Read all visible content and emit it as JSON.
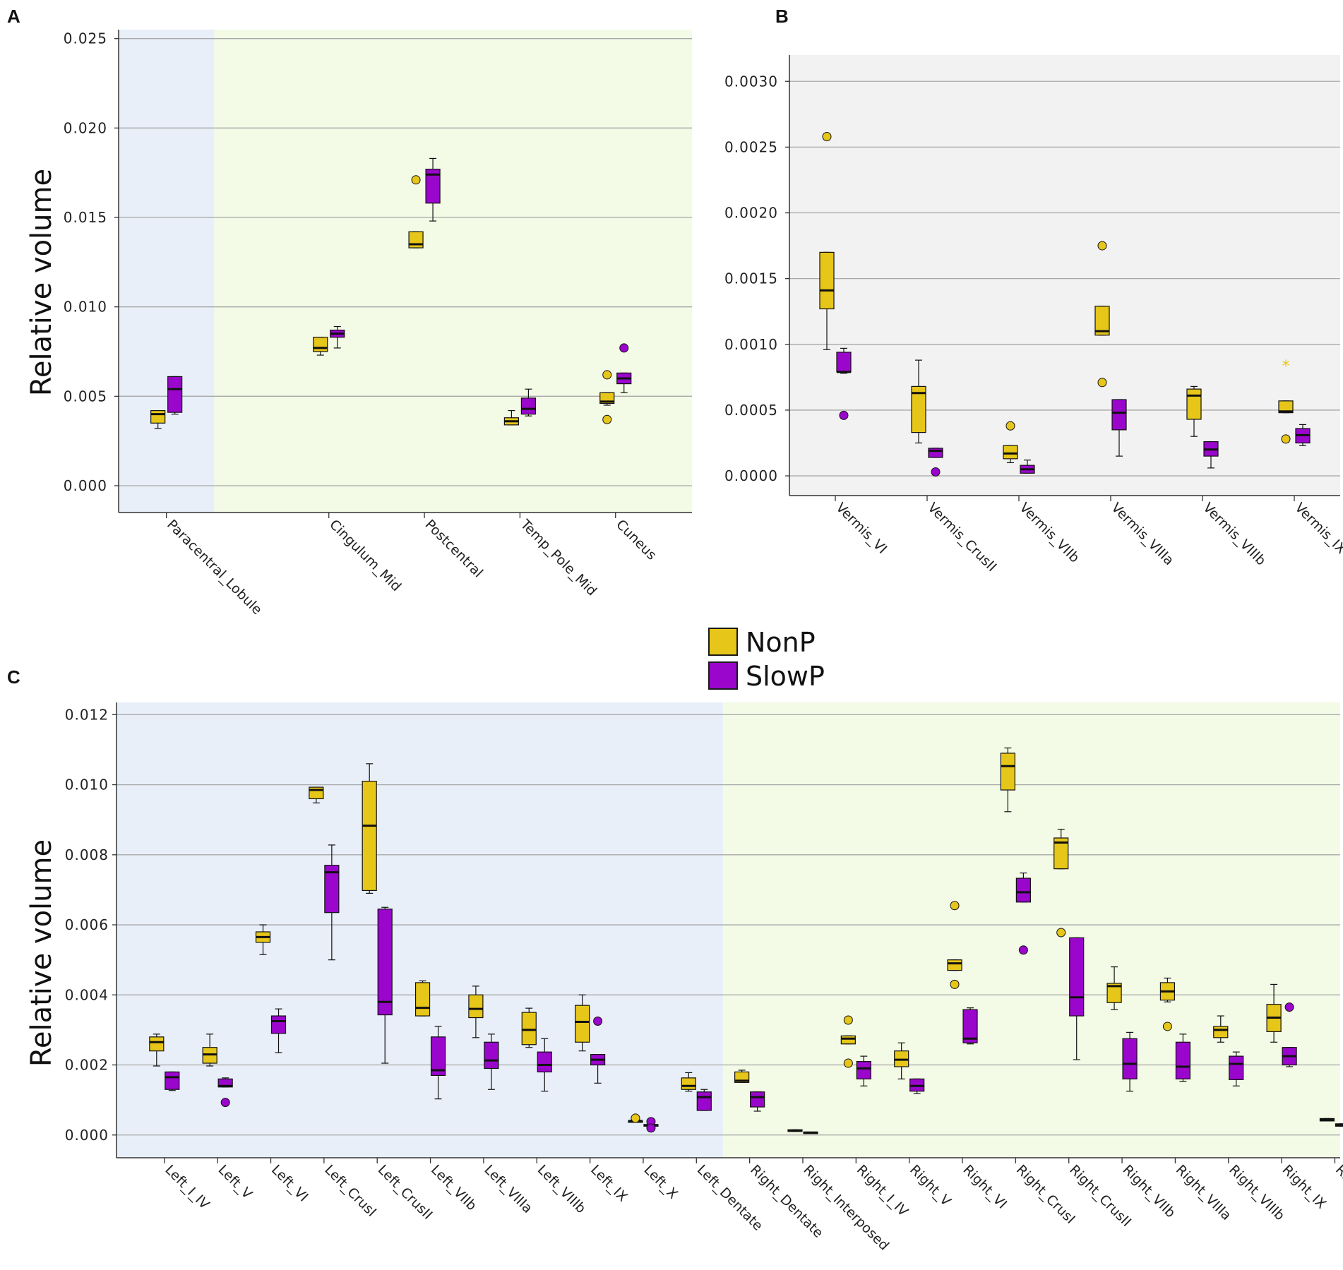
{
  "legend": {
    "entries": [
      {
        "name": "NonP",
        "color": "#e6c619"
      },
      {
        "name": "SlowP",
        "color": "#9a06cc"
      }
    ]
  },
  "colors": {
    "nonp": "#e6c619",
    "slowp": "#9a06cc",
    "blue_bg": "#e8eff9",
    "green_bg": "#f3fbe6",
    "gray_bg": "#f2f2f2",
    "grid": "#a8a8a8"
  },
  "chart_data": [
    {
      "panel": "A",
      "type": "box",
      "ylabel": "Relative volume",
      "ylim": [
        -0.0015,
        0.0255
      ],
      "yticks": [
        0.0,
        0.005,
        0.01,
        0.015,
        0.02,
        0.025
      ],
      "ytick_labels": [
        "0.000",
        "0.005",
        "0.010",
        "0.015",
        "0.020",
        "0.025"
      ],
      "regions": [
        {
          "from": 0,
          "to": 1,
          "color": "blue"
        },
        {
          "from": 1,
          "to": 6,
          "color": "green"
        }
      ],
      "categories": [
        "Paracentral_Lobule",
        "Cingulum_Mid",
        "Postcentral",
        "Temp_Pole_Mid",
        "Cuneus"
      ],
      "category_positions": [
        0.5,
        2.2,
        3.2,
        4.2,
        5.2
      ],
      "series": [
        {
          "name": "NonP",
          "boxes": [
            {
              "min": 0.0032,
              "q1": 0.0035,
              "median": 0.004,
              "q3": 0.0042,
              "max": 0.0042,
              "outliers": []
            },
            {
              "min": 0.0073,
              "q1": 0.0075,
              "median": 0.0077,
              "q3": 0.0083,
              "max": 0.0083,
              "outliers": []
            },
            {
              "min": 0.0133,
              "q1": 0.0133,
              "median": 0.0135,
              "q3": 0.0142,
              "max": 0.0142,
              "outliers": [
                0.0171
              ]
            },
            {
              "min": 0.0034,
              "q1": 0.0034,
              "median": 0.0036,
              "q3": 0.0038,
              "max": 0.0042,
              "outliers": []
            },
            {
              "min": 0.0045,
              "q1": 0.0046,
              "median": 0.0047,
              "q3": 0.0052,
              "max": 0.0052,
              "outliers": [
                0.0062,
                0.0037
              ]
            }
          ]
        },
        {
          "name": "SlowP",
          "boxes": [
            {
              "min": 0.004,
              "q1": 0.0041,
              "median": 0.0054,
              "q3": 0.0061,
              "max": 0.0061,
              "outliers": []
            },
            {
              "min": 0.0077,
              "q1": 0.0083,
              "median": 0.0085,
              "q3": 0.0087,
              "max": 0.0089,
              "outliers": []
            },
            {
              "min": 0.0148,
              "q1": 0.0158,
              "median": 0.0174,
              "q3": 0.0177,
              "max": 0.0183,
              "outliers": []
            },
            {
              "min": 0.0039,
              "q1": 0.004,
              "median": 0.0043,
              "q3": 0.0049,
              "max": 0.0054,
              "outliers": []
            },
            {
              "min": 0.0052,
              "q1": 0.0057,
              "median": 0.006,
              "q3": 0.0063,
              "max": 0.0063,
              "outliers": [
                0.0077
              ]
            }
          ]
        }
      ]
    },
    {
      "panel": "B",
      "type": "box",
      "ylabel": "",
      "ylim": [
        -0.00015,
        0.0032
      ],
      "yticks": [
        0.0,
        0.0005,
        0.001,
        0.0015,
        0.002,
        0.0025,
        0.003
      ],
      "ytick_labels": [
        "0.0000",
        "0.0005",
        "0.0010",
        "0.0015",
        "0.0020",
        "0.0025",
        "0.0030"
      ],
      "regions": [
        {
          "from": 0,
          "to": 6,
          "color": "gray"
        }
      ],
      "categories": [
        "Vermis_VI",
        "Vermis_CrusII",
        "Vermis_VIIb",
        "Vermis_VIIIa",
        "Vermis_VIIIb",
        "Vermis_IX"
      ],
      "category_positions": [
        0.5,
        1.5,
        2.5,
        3.5,
        4.5,
        5.5
      ],
      "series": [
        {
          "name": "NonP",
          "boxes": [
            {
              "min": 0.00096,
              "q1": 0.00127,
              "median": 0.00141,
              "q3": 0.0017,
              "max": 0.0017,
              "outliers": [
                0.00258
              ]
            },
            {
              "min": 0.00025,
              "q1": 0.00033,
              "median": 0.00063,
              "q3": 0.00068,
              "max": 0.00088,
              "outliers": []
            },
            {
              "min": 0.0001,
              "q1": 0.00013,
              "median": 0.00017,
              "q3": 0.00023,
              "max": 0.00023,
              "outliers": [
                0.00038
              ]
            },
            {
              "min": 0.00107,
              "q1": 0.00107,
              "median": 0.0011,
              "q3": 0.00129,
              "max": 0.00129,
              "outliers": [
                0.00175,
                0.00071
              ]
            },
            {
              "min": 0.0003,
              "q1": 0.00043,
              "median": 0.00061,
              "q3": 0.00066,
              "max": 0.00068,
              "outliers": []
            },
            {
              "min": 0.00048,
              "q1": 0.00048,
              "median": 0.00049,
              "q3": 0.00057,
              "max": 0.00057,
              "outliers": [
                0.00028
              ]
            }
          ],
          "extremes": [
            null,
            null,
            null,
            null,
            null,
            0.00086
          ]
        },
        {
          "name": "SlowP",
          "boxes": [
            {
              "min": 0.00078,
              "q1": 0.00079,
              "median": 0.00079,
              "q3": 0.00094,
              "max": 0.00097,
              "outliers": [
                0.00046
              ]
            },
            {
              "min": 0.00014,
              "q1": 0.00014,
              "median": 0.00019,
              "q3": 0.00021,
              "max": 0.00021,
              "outliers": [
                3e-05
              ]
            },
            {
              "min": 2e-05,
              "q1": 2e-05,
              "median": 5e-05,
              "q3": 8e-05,
              "max": 0.00012,
              "outliers": []
            },
            {
              "min": 0.00015,
              "q1": 0.00035,
              "median": 0.00048,
              "q3": 0.00058,
              "max": 0.00058,
              "outliers": []
            },
            {
              "min": 6e-05,
              "q1": 0.00015,
              "median": 0.0002,
              "q3": 0.00026,
              "max": 0.00026,
              "outliers": []
            },
            {
              "min": 0.00023,
              "q1": 0.00025,
              "median": 0.00031,
              "q3": 0.00036,
              "max": 0.00039,
              "outliers": []
            }
          ]
        }
      ]
    },
    {
      "panel": "C",
      "type": "box",
      "ylabel": "Relative volume",
      "ylim": [
        -0.00065,
        0.01235
      ],
      "yticks": [
        0.0,
        0.002,
        0.004,
        0.006,
        0.008,
        0.01,
        0.012
      ],
      "ytick_labels": [
        "0.000",
        "0.002",
        "0.004",
        "0.006",
        "0.008",
        "0.010",
        "0.012"
      ],
      "regions": [
        {
          "from": 0,
          "to": 11.4,
          "color": "blue"
        },
        {
          "from": 11.4,
          "to": 24,
          "color": "green"
        }
      ],
      "categories": [
        "Left_I_IV",
        "Left_V",
        "Left_VI",
        "Left_CrusI",
        "Left_CrusII",
        "Left_VIIb",
        "Left_VIIIa",
        "Left_VIIIb",
        "Left_IX",
        "Left_X",
        "Left_Dentate",
        "Right_Dentate",
        "Right_Interposed",
        "Right_I_IV",
        "Right_V",
        "Right_VI",
        "Right_CrusI",
        "Right_CrusII",
        "Right_VIIb",
        "Right_VIIIa",
        "Right_VIIIb",
        "Right_IX",
        "Right_X"
      ],
      "category_positions": [
        0.9,
        1.9,
        2.9,
        3.9,
        4.9,
        5.9,
        6.9,
        7.9,
        8.9,
        9.9,
        10.9,
        11.9,
        12.9,
        13.9,
        14.9,
        15.9,
        16.9,
        17.9,
        18.9,
        19.9,
        20.9,
        21.9,
        22.9
      ],
      "series": [
        {
          "name": "NonP",
          "boxes": [
            {
              "min": 0.00197,
              "q1": 0.0024,
              "median": 0.00265,
              "q3": 0.0028,
              "max": 0.00288,
              "outliers": []
            },
            {
              "min": 0.00197,
              "q1": 0.00205,
              "median": 0.0023,
              "q3": 0.0025,
              "max": 0.00288,
              "outliers": []
            },
            {
              "min": 0.00515,
              "q1": 0.0055,
              "median": 0.00565,
              "q3": 0.0058,
              "max": 0.006,
              "outliers": []
            },
            {
              "min": 0.00948,
              "q1": 0.0096,
              "median": 0.00985,
              "q3": 0.00993,
              "max": 0.00993,
              "outliers": []
            },
            {
              "min": 0.0069,
              "q1": 0.00698,
              "median": 0.00883,
              "q3": 0.0101,
              "max": 0.0106,
              "outliers": []
            },
            {
              "min": 0.0034,
              "q1": 0.0034,
              "median": 0.00363,
              "q3": 0.00435,
              "max": 0.0044,
              "outliers": []
            },
            {
              "min": 0.00278,
              "q1": 0.00335,
              "median": 0.0036,
              "q3": 0.004,
              "max": 0.00425,
              "outliers": []
            },
            {
              "min": 0.0025,
              "q1": 0.00258,
              "median": 0.003,
              "q3": 0.0035,
              "max": 0.00362,
              "outliers": []
            },
            {
              "min": 0.0024,
              "q1": 0.00265,
              "median": 0.00323,
              "q3": 0.0037,
              "max": 0.004,
              "outliers": []
            },
            {
              "min": 0.0004,
              "q1": 0.0004,
              "median": 0.0004,
              "q3": 0.0004,
              "max": 0.0004,
              "outliers": [
                0.00048
              ]
            },
            {
              "min": 0.00125,
              "q1": 0.0013,
              "median": 0.0014,
              "q3": 0.00163,
              "max": 0.00178,
              "outliers": []
            },
            {
              "min": 0.0015,
              "q1": 0.0015,
              "median": 0.00155,
              "q3": 0.0018,
              "max": 0.00185,
              "outliers": []
            },
            {
              "min": 0.0001,
              "q1": 0.0001,
              "median": 0.00012,
              "q3": 0.00015,
              "max": 0.00015,
              "outliers": []
            },
            {
              "min": 0.0026,
              "q1": 0.0026,
              "median": 0.00275,
              "q3": 0.00283,
              "max": 0.00283,
              "outliers": [
                0.00328,
                0.00205
              ]
            },
            {
              "min": 0.0016,
              "q1": 0.00195,
              "median": 0.00215,
              "q3": 0.0024,
              "max": 0.00263,
              "outliers": []
            },
            {
              "min": 0.0047,
              "q1": 0.0047,
              "median": 0.0049,
              "q3": 0.005,
              "max": 0.005,
              "outliers": [
                0.00655,
                0.0043
              ]
            },
            {
              "min": 0.00923,
              "q1": 0.00985,
              "median": 0.01053,
              "q3": 0.0109,
              "max": 0.01105,
              "outliers": []
            },
            {
              "min": 0.0076,
              "q1": 0.0076,
              "median": 0.00835,
              "q3": 0.00848,
              "max": 0.00873,
              "outliers": [
                0.00578
              ]
            },
            {
              "min": 0.00358,
              "q1": 0.00378,
              "median": 0.00425,
              "q3": 0.00433,
              "max": 0.0048,
              "outliers": []
            },
            {
              "min": 0.0038,
              "q1": 0.00385,
              "median": 0.0041,
              "q3": 0.00435,
              "max": 0.00448,
              "outliers": [
                0.0031
              ]
            },
            {
              "min": 0.00265,
              "q1": 0.00278,
              "median": 0.003,
              "q3": 0.0031,
              "max": 0.0034,
              "outliers": []
            },
            {
              "min": 0.00265,
              "q1": 0.00295,
              "median": 0.00335,
              "q3": 0.00373,
              "max": 0.0043,
              "outliers": []
            },
            {
              "min": 0.0004,
              "q1": 0.0004,
              "median": 0.00043,
              "q3": 0.00047,
              "max": 0.00047,
              "outliers": []
            }
          ]
        },
        {
          "name": "SlowP",
          "boxes": [
            {
              "min": 0.00127,
              "q1": 0.0013,
              "median": 0.00165,
              "q3": 0.0018,
              "max": 0.0018,
              "outliers": []
            },
            {
              "min": 0.00137,
              "q1": 0.00137,
              "median": 0.0014,
              "q3": 0.0016,
              "max": 0.00163,
              "outliers": [
                0.00093
              ]
            },
            {
              "min": 0.00235,
              "q1": 0.0029,
              "median": 0.00325,
              "q3": 0.0034,
              "max": 0.0036,
              "outliers": []
            },
            {
              "min": 0.005,
              "q1": 0.00635,
              "median": 0.0075,
              "q3": 0.0077,
              "max": 0.00828,
              "outliers": []
            },
            {
              "min": 0.00205,
              "q1": 0.00343,
              "median": 0.0038,
              "q3": 0.00645,
              "max": 0.0065,
              "outliers": []
            },
            {
              "min": 0.00103,
              "q1": 0.0017,
              "median": 0.00185,
              "q3": 0.0028,
              "max": 0.0031,
              "outliers": []
            },
            {
              "min": 0.0013,
              "q1": 0.0019,
              "median": 0.00213,
              "q3": 0.00265,
              "max": 0.00288,
              "outliers": []
            },
            {
              "min": 0.00125,
              "q1": 0.0018,
              "median": 0.002,
              "q3": 0.00237,
              "max": 0.00275,
              "outliers": []
            },
            {
              "min": 0.00148,
              "q1": 0.002,
              "median": 0.00215,
              "q3": 0.0023,
              "max": 0.0023,
              "outliers": [
                0.00325
              ]
            },
            {
              "min": 0.00025,
              "q1": 0.00025,
              "median": 0.00028,
              "q3": 0.0003,
              "max": 0.0003,
              "outliers": [
                0.00038,
                0.0002
              ]
            },
            {
              "min": 0.0007,
              "q1": 0.0007,
              "median": 0.00108,
              "q3": 0.00123,
              "max": 0.0013,
              "outliers": []
            },
            {
              "min": 0.00068,
              "q1": 0.0008,
              "median": 0.00108,
              "q3": 0.00123,
              "max": 0.00123,
              "outliers": []
            },
            {
              "min": 5e-05,
              "q1": 5e-05,
              "median": 7e-05,
              "q3": 8e-05,
              "max": 8e-05,
              "outliers": []
            },
            {
              "min": 0.0014,
              "q1": 0.0016,
              "median": 0.0019,
              "q3": 0.0021,
              "max": 0.00225,
              "outliers": []
            },
            {
              "min": 0.00118,
              "q1": 0.00125,
              "median": 0.0014,
              "q3": 0.0016,
              "max": 0.0016,
              "outliers": []
            },
            {
              "min": 0.0026,
              "q1": 0.00263,
              "median": 0.00275,
              "q3": 0.00358,
              "max": 0.00363,
              "outliers": []
            },
            {
              "min": 0.00665,
              "q1": 0.00665,
              "median": 0.00693,
              "q3": 0.00733,
              "max": 0.00748,
              "outliers": [
                0.00528
              ]
            },
            {
              "min": 0.00215,
              "q1": 0.0034,
              "median": 0.00393,
              "q3": 0.00563,
              "max": 0.00563,
              "outliers": []
            },
            {
              "min": 0.00125,
              "q1": 0.0016,
              "median": 0.00203,
              "q3": 0.00275,
              "max": 0.00293,
              "outliers": []
            },
            {
              "min": 0.00153,
              "q1": 0.0016,
              "median": 0.00195,
              "q3": 0.00265,
              "max": 0.00288,
              "outliers": []
            },
            {
              "min": 0.0014,
              "q1": 0.00158,
              "median": 0.00203,
              "q3": 0.00225,
              "max": 0.00237,
              "outliers": []
            },
            {
              "min": 0.00195,
              "q1": 0.002,
              "median": 0.00225,
              "q3": 0.0025,
              "max": 0.0025,
              "outliers": [
                0.00365
              ]
            },
            {
              "min": 0.00025,
              "q1": 0.00025,
              "median": 0.00028,
              "q3": 0.00032,
              "max": 0.00032,
              "outliers": []
            }
          ]
        }
      ]
    }
  ]
}
